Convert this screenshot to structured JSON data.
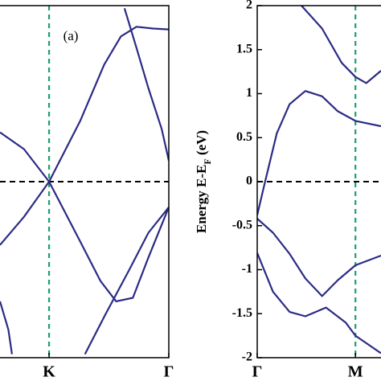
{
  "chart_data": [
    {
      "type": "line",
      "annotation": "(a)",
      "color": "#2b2b85",
      "xlim": [
        0.59,
        2
      ],
      "ylim": [
        -2,
        2
      ],
      "xticks": [
        {
          "value": 1,
          "label": "K"
        },
        {
          "value": 2,
          "label": "Γ"
        }
      ],
      "hline": 0,
      "hline_color": "#000000",
      "vline": 1,
      "vline_color": "#1f9e6e",
      "series": [
        {
          "x": [
            0.59,
            0.79,
            1,
            1.26,
            1.43,
            1.56,
            1.7,
            1.83,
            2
          ],
          "values": [
            0.56,
            0.37,
            0,
            -0.68,
            -1.13,
            -1.36,
            -1.32,
            -0.86,
            -0.29
          ]
        },
        {
          "x": [
            0.59,
            0.79,
            1,
            1.26,
            1.46,
            1.6,
            1.73,
            1.87,
            2
          ],
          "values": [
            -0.72,
            -0.4,
            0,
            0.69,
            1.33,
            1.65,
            1.76,
            1.74,
            1.73
          ]
        },
        {
          "x": [
            1.63,
            1.73,
            1.83,
            1.94,
            2
          ],
          "values": [
            1.97,
            1.52,
            1.06,
            0.6,
            0.24
          ]
        },
        {
          "x": [
            1.3,
            1.47,
            1.67,
            1.83,
            2
          ],
          "values": [
            -1.96,
            -1.51,
            -1.0,
            -0.58,
            -0.29
          ]
        },
        {
          "x": [
            0.59,
            0.66,
            0.69
          ],
          "values": [
            -1.36,
            -1.68,
            -1.96
          ]
        }
      ]
    },
    {
      "type": "line",
      "color": "#2b2b85",
      "y_label": {
        "main": "Energy E-E",
        "sub": "F",
        "unit": " (eV)"
      },
      "xlim": [
        0,
        1.26
      ],
      "ylim": [
        -2,
        2
      ],
      "xticks": [
        {
          "value": 0,
          "label": "Γ"
        },
        {
          "value": 1,
          "label": "M"
        }
      ],
      "yticks": [
        -2,
        -1.5,
        -1,
        -0.5,
        0,
        0.5,
        1,
        1.5,
        2
      ],
      "hline": 0,
      "hline_color": "#000000",
      "vline": 1,
      "vline_color": "#1f9e6e",
      "series": [
        {
          "x": [
            0.45,
            0.66,
            0.86,
            1,
            1.11,
            1.26
          ],
          "values": [
            2.0,
            1.74,
            1.35,
            1.19,
            1.12,
            1.26
          ]
        },
        {
          "x": [
            0,
            0.08,
            0.2,
            0.33,
            0.49,
            0.66,
            0.82,
            1,
            1.26
          ],
          "values": [
            -0.38,
            0.0,
            0.55,
            0.88,
            1.03,
            0.97,
            0.8,
            0.69,
            0.63
          ]
        },
        {
          "x": [
            0,
            0.16,
            0.33,
            0.49,
            0.66,
            0.82,
            1,
            1.26
          ],
          "values": [
            -0.42,
            -0.58,
            -0.82,
            -1.1,
            -1.3,
            -1.12,
            -0.95,
            -0.84
          ]
        },
        {
          "x": [
            0,
            0.16,
            0.33,
            0.49,
            0.7,
            0.9,
            1,
            1.26
          ],
          "values": [
            -0.81,
            -1.25,
            -1.48,
            -1.53,
            -1.43,
            -1.6,
            -1.75,
            -1.95
          ]
        }
      ]
    }
  ]
}
